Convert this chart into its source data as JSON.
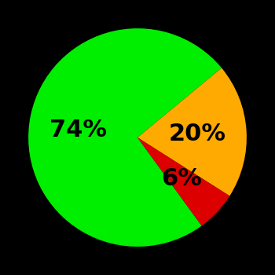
{
  "slices": [
    74,
    20,
    6
  ],
  "colors": [
    "#00ee00",
    "#ffaa00",
    "#dd0000"
  ],
  "labels": [
    "74%",
    "20%",
    "6%"
  ],
  "label_offsets": [
    0.55,
    0.55,
    0.55
  ],
  "background_color": "#000000",
  "label_fontsize": 22,
  "label_fontweight": "bold",
  "startangle": -54,
  "figsize": [
    3.5,
    3.5
  ],
  "dpi": 100
}
